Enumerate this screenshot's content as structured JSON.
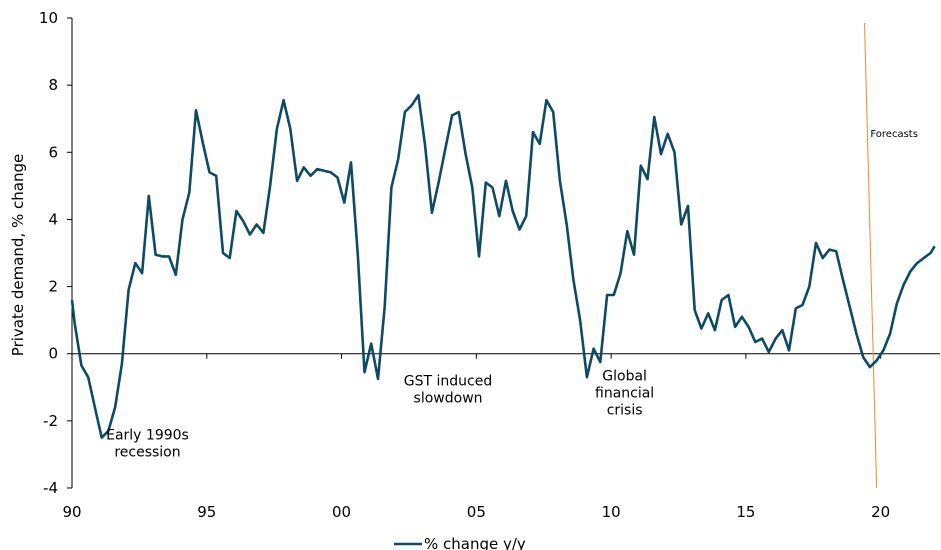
{
  "chart_data": {
    "type": "line",
    "ylabel": "Private demand, % change",
    "ylim": [
      -4,
      10
    ],
    "yticks": [
      -4,
      -2,
      0,
      2,
      4,
      6,
      8,
      10
    ],
    "xlim": [
      1990,
      2022.2
    ],
    "xticks": [
      {
        "value": 1990,
        "label": "90"
      },
      {
        "value": 1995,
        "label": "95"
      },
      {
        "value": 2000,
        "label": "00"
      },
      {
        "value": 2005,
        "label": "05"
      },
      {
        "value": 2010,
        "label": "10"
      },
      {
        "value": 2015,
        "label": "15"
      },
      {
        "value": 2020,
        "label": "20"
      }
    ],
    "grid": false,
    "legend_position": "bottom-center",
    "series": [
      {
        "name": "% change y/y",
        "color": "#0d4a66",
        "points": [
          [
            1990.0,
            1.6
          ],
          [
            1990.1,
            0.9
          ],
          [
            1990.35,
            -0.35
          ],
          [
            1990.6,
            -0.7
          ],
          [
            1990.85,
            -1.6
          ],
          [
            1991.1,
            -2.5
          ],
          [
            1991.35,
            -2.3
          ],
          [
            1991.6,
            -1.6
          ],
          [
            1991.85,
            -0.3
          ],
          [
            1992.1,
            1.9
          ],
          [
            1992.35,
            2.7
          ],
          [
            1992.6,
            2.4
          ],
          [
            1992.85,
            4.7
          ],
          [
            1993.1,
            2.95
          ],
          [
            1993.35,
            2.9
          ],
          [
            1993.6,
            2.9
          ],
          [
            1993.85,
            2.35
          ],
          [
            1994.1,
            4.0
          ],
          [
            1994.35,
            4.8
          ],
          [
            1994.6,
            7.25
          ],
          [
            1994.85,
            6.3
          ],
          [
            1995.1,
            5.4
          ],
          [
            1995.35,
            5.3
          ],
          [
            1995.6,
            3.0
          ],
          [
            1995.85,
            2.85
          ],
          [
            1996.1,
            4.25
          ],
          [
            1996.35,
            3.95
          ],
          [
            1996.6,
            3.55
          ],
          [
            1996.85,
            3.85
          ],
          [
            1997.1,
            3.6
          ],
          [
            1997.35,
            5.0
          ],
          [
            1997.6,
            6.7
          ],
          [
            1997.85,
            7.55
          ],
          [
            1998.1,
            6.7
          ],
          [
            1998.35,
            5.15
          ],
          [
            1998.6,
            5.55
          ],
          [
            1998.85,
            5.3
          ],
          [
            1999.1,
            5.5
          ],
          [
            1999.35,
            5.45
          ],
          [
            1999.6,
            5.4
          ],
          [
            1999.85,
            5.25
          ],
          [
            2000.1,
            4.5
          ],
          [
            2000.35,
            5.7
          ],
          [
            2000.6,
            3.0
          ],
          [
            2000.85,
            -0.55
          ],
          [
            2001.1,
            0.3
          ],
          [
            2001.35,
            -0.75
          ],
          [
            2001.6,
            1.4
          ],
          [
            2001.85,
            4.95
          ],
          [
            2002.1,
            5.8
          ],
          [
            2002.35,
            7.2
          ],
          [
            2002.6,
            7.4
          ],
          [
            2002.85,
            7.7
          ],
          [
            2003.1,
            6.2
          ],
          [
            2003.35,
            4.2
          ],
          [
            2003.6,
            5.1
          ],
          [
            2003.85,
            6.1
          ],
          [
            2004.1,
            7.1
          ],
          [
            2004.35,
            7.2
          ],
          [
            2004.6,
            5.95
          ],
          [
            2004.85,
            4.95
          ],
          [
            2005.1,
            2.9
          ],
          [
            2005.35,
            5.1
          ],
          [
            2005.6,
            4.95
          ],
          [
            2005.85,
            4.1
          ],
          [
            2006.1,
            5.15
          ],
          [
            2006.35,
            4.25
          ],
          [
            2006.6,
            3.7
          ],
          [
            2006.85,
            4.1
          ],
          [
            2007.1,
            6.6
          ],
          [
            2007.35,
            6.25
          ],
          [
            2007.6,
            7.55
          ],
          [
            2007.85,
            7.2
          ],
          [
            2008.1,
            5.15
          ],
          [
            2008.35,
            3.85
          ],
          [
            2008.6,
            2.2
          ],
          [
            2008.85,
            1.0
          ],
          [
            2009.1,
            -0.7
          ],
          [
            2009.35,
            0.15
          ],
          [
            2009.6,
            -0.25
          ],
          [
            2009.85,
            1.75
          ],
          [
            2010.1,
            1.75
          ],
          [
            2010.35,
            2.4
          ],
          [
            2010.6,
            3.65
          ],
          [
            2010.85,
            2.95
          ],
          [
            2011.1,
            5.6
          ],
          [
            2011.35,
            5.2
          ],
          [
            2011.6,
            7.05
          ],
          [
            2011.85,
            5.95
          ],
          [
            2012.1,
            6.55
          ],
          [
            2012.35,
            6.0
          ],
          [
            2012.6,
            3.85
          ],
          [
            2012.85,
            4.4
          ],
          [
            2013.1,
            1.3
          ],
          [
            2013.35,
            0.75
          ],
          [
            2013.6,
            1.2
          ],
          [
            2013.85,
            0.7
          ],
          [
            2014.1,
            1.6
          ],
          [
            2014.35,
            1.75
          ],
          [
            2014.6,
            0.8
          ],
          [
            2014.85,
            1.1
          ],
          [
            2015.1,
            0.8
          ],
          [
            2015.35,
            0.35
          ],
          [
            2015.6,
            0.45
          ],
          [
            2015.85,
            0.05
          ],
          [
            2016.1,
            0.45
          ],
          [
            2016.35,
            0.7
          ],
          [
            2016.6,
            0.1
          ],
          [
            2016.85,
            1.35
          ],
          [
            2017.1,
            1.45
          ],
          [
            2017.35,
            2.0
          ],
          [
            2017.6,
            3.3
          ],
          [
            2017.85,
            2.85
          ],
          [
            2018.1,
            3.1
          ],
          [
            2018.35,
            3.05
          ],
          [
            2018.6,
            2.2
          ],
          [
            2018.85,
            1.4
          ],
          [
            2019.1,
            0.6
          ],
          [
            2019.35,
            -0.1
          ],
          [
            2019.6,
            -0.4
          ],
          [
            2019.85,
            -0.2
          ],
          [
            2020.1,
            0.1
          ],
          [
            2020.35,
            0.6
          ],
          [
            2020.6,
            1.5
          ],
          [
            2020.85,
            2.05
          ],
          [
            2021.1,
            2.45
          ],
          [
            2021.35,
            2.7
          ],
          [
            2021.6,
            2.85
          ],
          [
            2021.85,
            3.0
          ],
          [
            2022.0,
            3.2
          ]
        ]
      }
    ],
    "forecast_line": {
      "x_top": 2019.4,
      "y_top": 9.85,
      "x_bottom": 2019.85,
      "y_bottom": -4,
      "color": "#f28c28"
    },
    "annotations": [
      {
        "id": "early-1990s",
        "lines": [
          "Early 1990s",
          "recession"
        ],
        "x": 1992.8,
        "y": -2.55,
        "size": "normal"
      },
      {
        "id": "gst",
        "lines": [
          "GST induced",
          "slowdown"
        ],
        "x": 2003.95,
        "y": -0.95,
        "size": "normal"
      },
      {
        "id": "gfc",
        "lines": [
          "Global",
          "financial",
          "crisis"
        ],
        "x": 2010.5,
        "y": -0.8,
        "size": "normal"
      },
      {
        "id": "forecasts",
        "lines": [
          "Forecasts"
        ],
        "x": 2020.5,
        "y": 6.45,
        "size": "small"
      }
    ]
  }
}
